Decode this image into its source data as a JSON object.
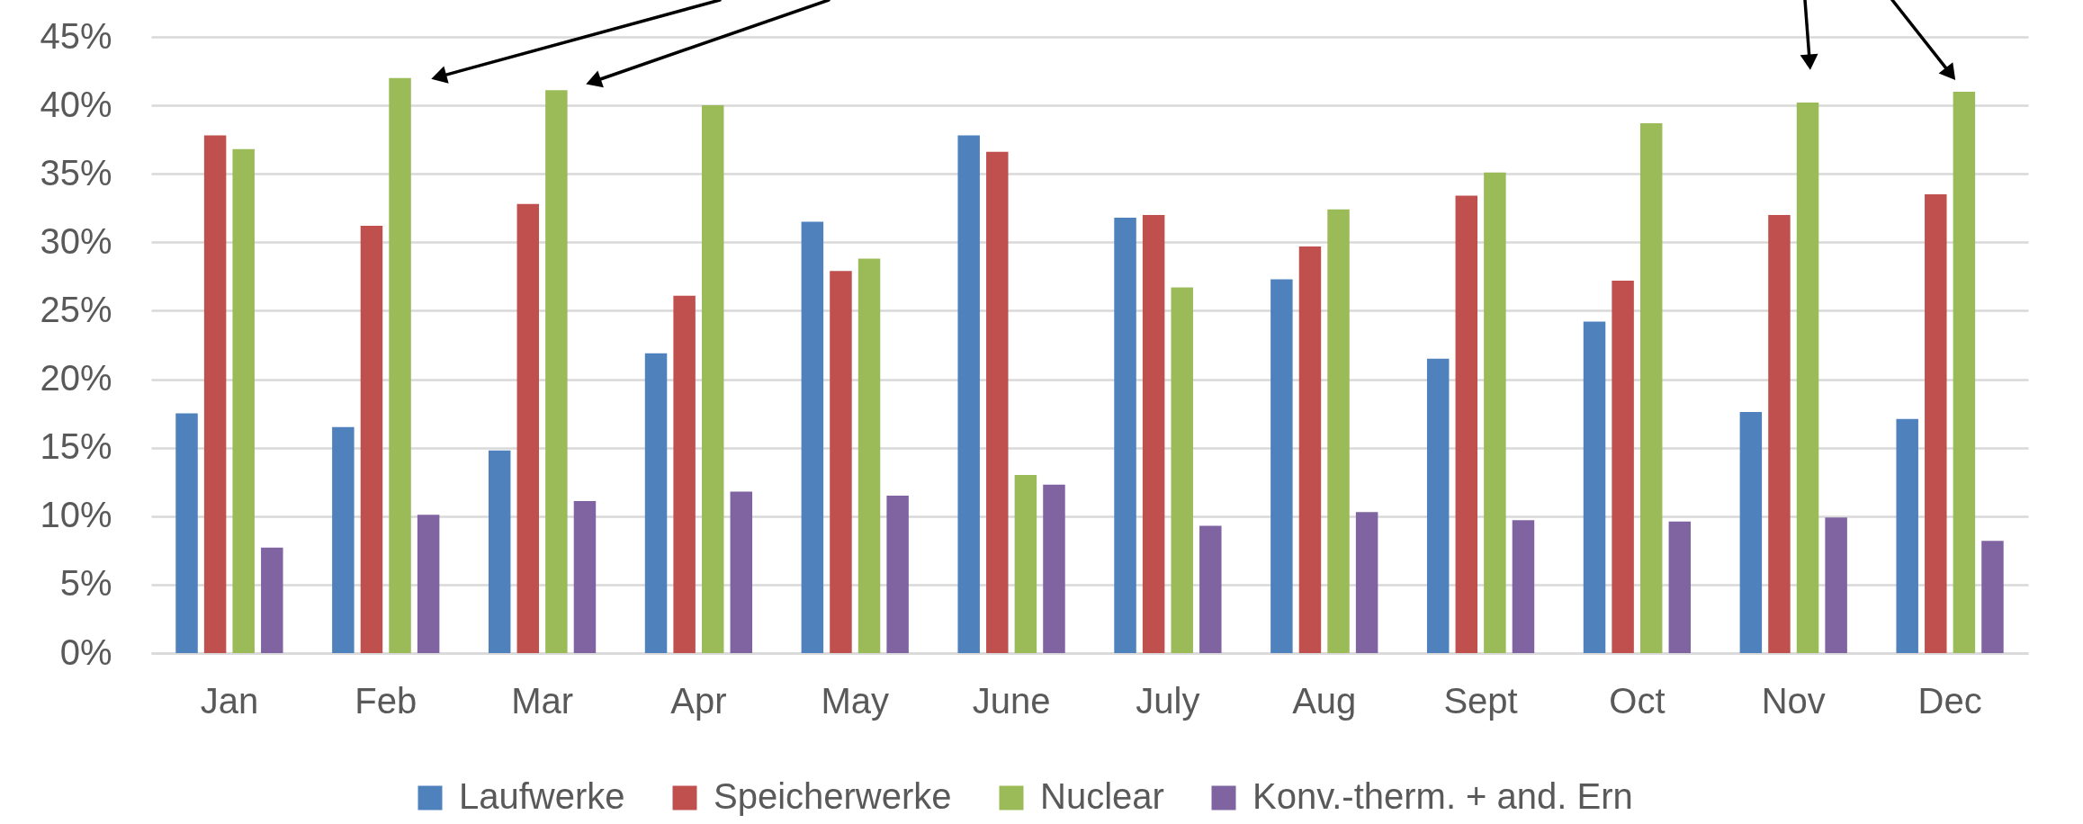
{
  "chart_data": {
    "type": "bar",
    "categories": [
      "Jan",
      "Feb",
      "Mar",
      "Apr",
      "May",
      "June",
      "July",
      "Aug",
      "Sept",
      "Oct",
      "Nov",
      "Dec"
    ],
    "series": [
      {
        "name": "Laufwerke",
        "color": "#4f81bd",
        "values": [
          17.5,
          16.5,
          14.8,
          21.9,
          31.5,
          37.8,
          31.8,
          27.3,
          21.5,
          24.2,
          17.6,
          17.1
        ]
      },
      {
        "name": "Speicherwerke",
        "color": "#c0504d",
        "values": [
          37.8,
          31.2,
          32.8,
          26.1,
          27.9,
          36.6,
          32.0,
          29.7,
          33.4,
          27.2,
          32.0,
          33.5
        ]
      },
      {
        "name": "Nuclear",
        "color": "#9bbb59",
        "values": [
          36.8,
          42.0,
          41.1,
          40.0,
          28.8,
          13.0,
          26.7,
          32.4,
          35.1,
          38.7,
          40.2,
          41.0
        ]
      },
      {
        "name": "Konv.-therm. + and. Ern",
        "color": "#8064a2",
        "values": [
          7.7,
          10.1,
          11.1,
          11.8,
          11.5,
          12.3,
          9.3,
          10.3,
          9.7,
          9.6,
          9.9,
          8.2
        ]
      }
    ],
    "ylim": [
      0,
      45
    ],
    "yticks": [
      {
        "value": 0,
        "label": "0%"
      },
      {
        "value": 5,
        "label": "5%"
      },
      {
        "value": 10,
        "label": "10%"
      },
      {
        "value": 15,
        "label": "15%"
      },
      {
        "value": 20,
        "label": "20%"
      },
      {
        "value": 25,
        "label": "25%"
      },
      {
        "value": 30,
        "label": "30%"
      },
      {
        "value": 35,
        "label": "35%"
      },
      {
        "value": 40,
        "label": "40%"
      },
      {
        "value": 45,
        "label": "45%"
      }
    ],
    "grid": "y",
    "legend": "bottom"
  }
}
